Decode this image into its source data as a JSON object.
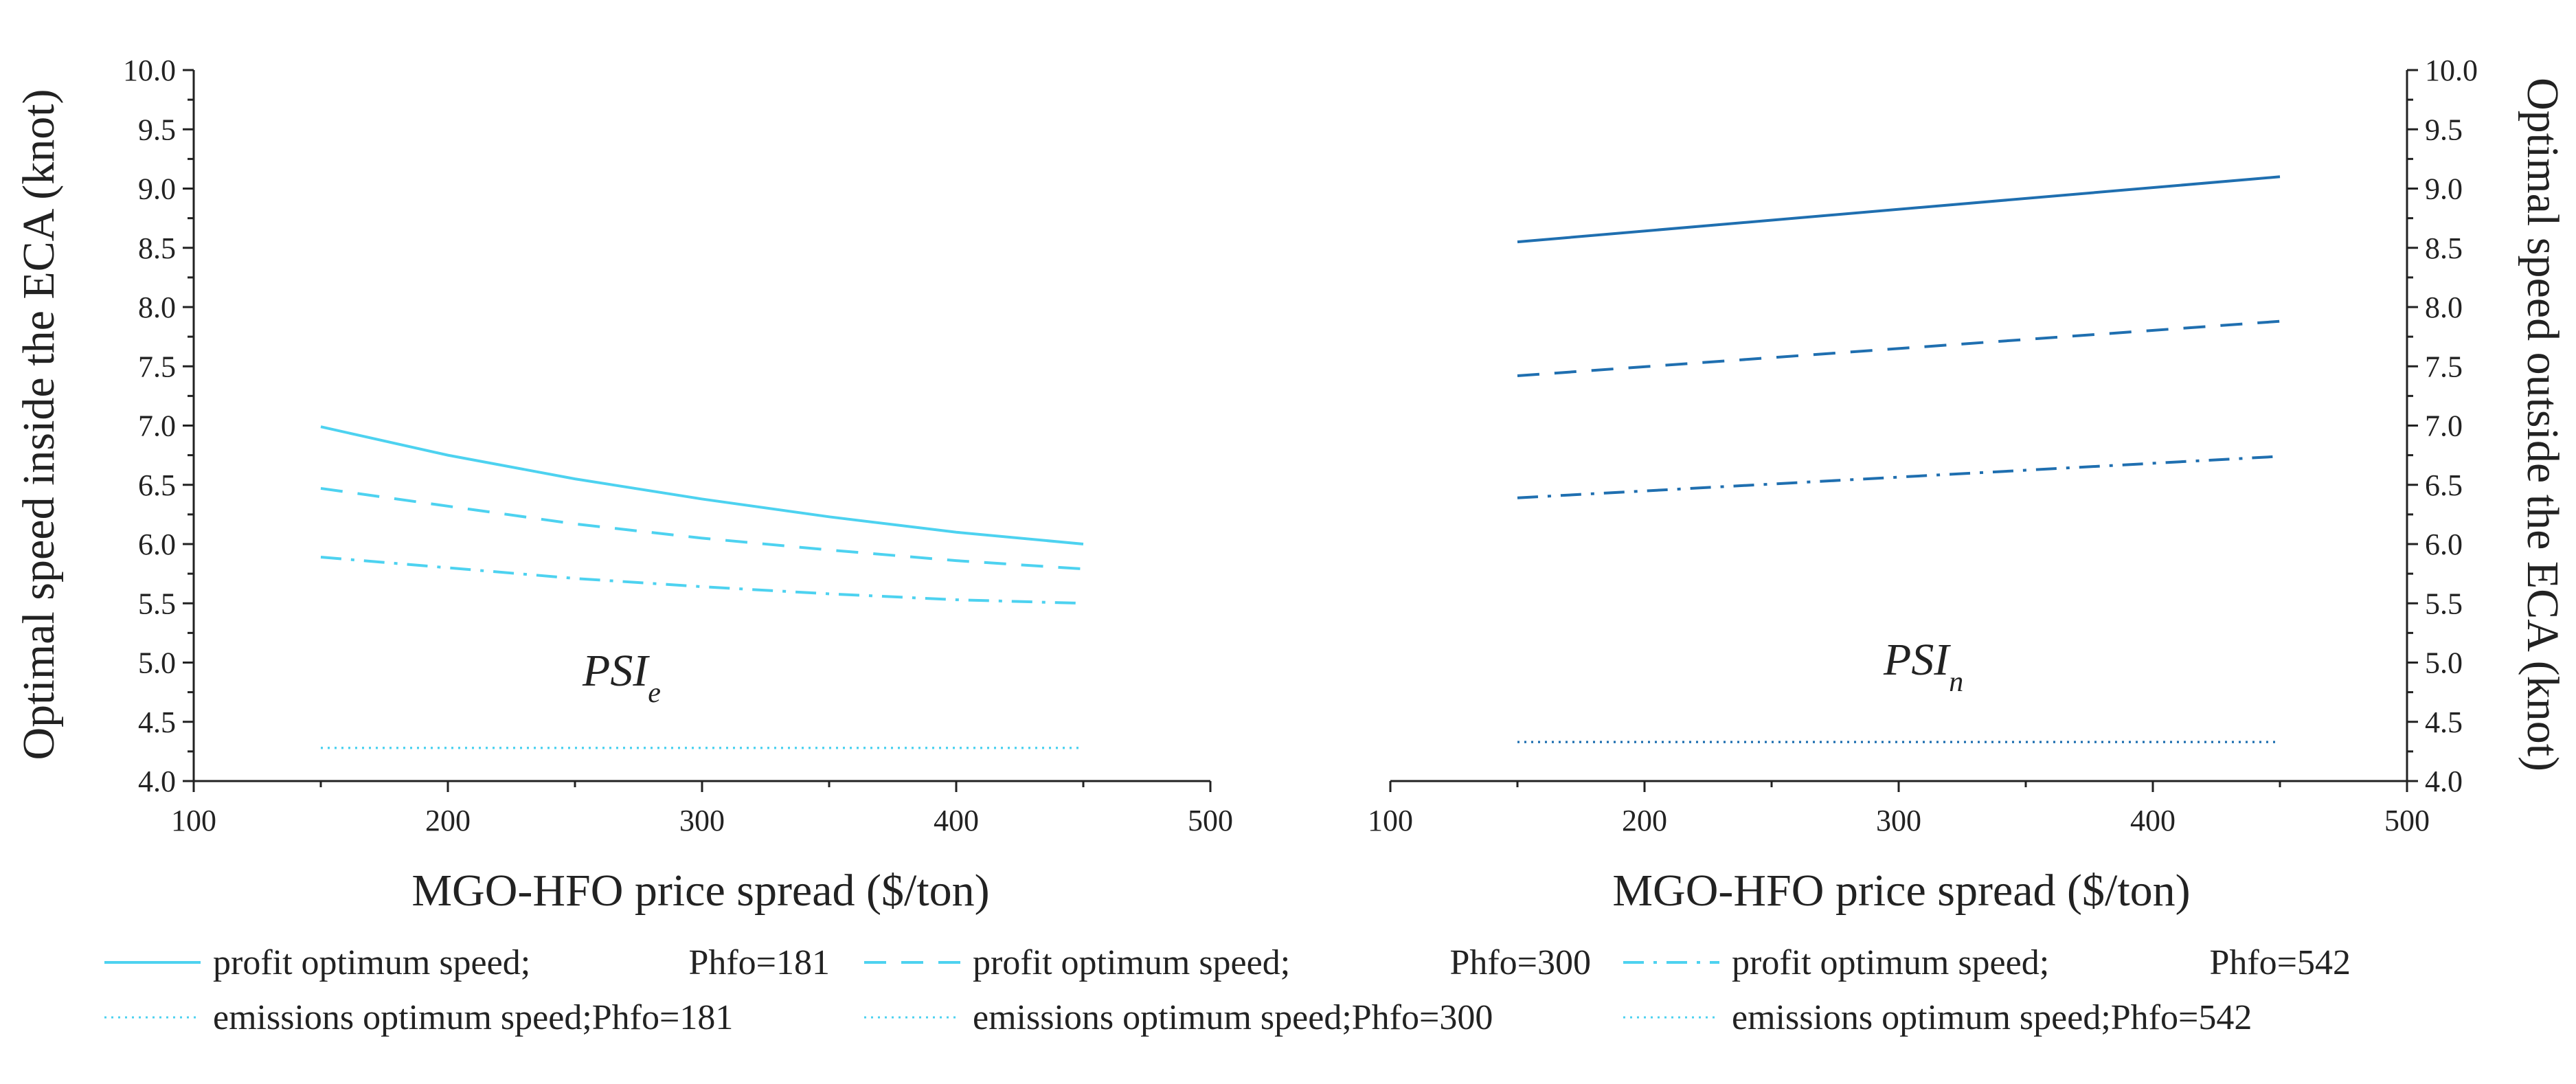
{
  "chart_data": [
    {
      "type": "line",
      "panel_label": "PSI",
      "panel_label_subscript": "e",
      "xlabel": "MGO-HFO price spread ($/ton)",
      "ylabel": "Optimal speed inside the ECA (knot)",
      "xlim": [
        100,
        500
      ],
      "ylim": [
        4.0,
        10.0
      ],
      "x_ticks": [
        "100",
        "200",
        "300",
        "400",
        "500"
      ],
      "y_ticks": [
        "4.0",
        "4.5",
        "5.0",
        "5.5",
        "6.0",
        "6.5",
        "7.0",
        "7.5",
        "8.0",
        "8.5",
        "9.0",
        "9.5",
        "10.0"
      ],
      "y_axis_side": "left",
      "grid": false,
      "x": [
        150,
        200,
        250,
        300,
        350,
        400,
        450
      ],
      "series": [
        {
          "name": "profit optimum speed; Phfo=181",
          "style": "solid",
          "color": "#4dd2f0",
          "values": [
            6.99,
            6.75,
            6.55,
            6.38,
            6.23,
            6.1,
            6.0
          ]
        },
        {
          "name": "profit optimum speed; Phfo=300",
          "style": "dashed",
          "color": "#4dd2f0",
          "values": [
            6.47,
            6.32,
            6.17,
            6.05,
            5.95,
            5.86,
            5.79
          ]
        },
        {
          "name": "profit optimum speed; Phfo=542",
          "style": "dashdot",
          "color": "#4dd2f0",
          "values": [
            5.89,
            5.8,
            5.71,
            5.64,
            5.58,
            5.53,
            5.5
          ]
        },
        {
          "name": "emissions optimum speed;Phfo=181",
          "style": "dotted",
          "color": "#4dd2f0",
          "values": [
            4.28,
            4.28,
            4.28,
            4.28,
            4.28,
            4.28,
            4.28
          ]
        },
        {
          "name": "emissions optimum speed;Phfo=300",
          "style": "dotted",
          "color": "#4dd2f0",
          "values": [
            4.28,
            4.28,
            4.28,
            4.28,
            4.28,
            4.28,
            4.28
          ]
        },
        {
          "name": "emissions optimum speed;Phfo=542",
          "style": "dotted",
          "color": "#4dd2f0",
          "values": [
            4.28,
            4.28,
            4.28,
            4.28,
            4.28,
            4.28,
            4.28
          ]
        }
      ]
    },
    {
      "type": "line",
      "panel_label": "PSI",
      "panel_label_subscript": "n",
      "xlabel": "MGO-HFO price spread ($/ton)",
      "ylabel": "Optimal speed outside the ECA (knot)",
      "xlim": [
        100,
        500
      ],
      "ylim": [
        4.0,
        10.0
      ],
      "x_ticks": [
        "100",
        "200",
        "300",
        "400",
        "500"
      ],
      "y_ticks": [
        "4.0",
        "4.5",
        "5.0",
        "5.5",
        "6.0",
        "6.5",
        "7.0",
        "7.5",
        "8.0",
        "8.5",
        "9.0",
        "9.5",
        "10.0"
      ],
      "y_axis_side": "right",
      "grid": false,
      "x": [
        150,
        450
      ],
      "series": [
        {
          "name": "profit optimum speed; Phfo=181",
          "style": "solid",
          "color": "#1f6fb0",
          "values": [
            8.55,
            9.1
          ]
        },
        {
          "name": "profit optimum speed; Phfo=300",
          "style": "dashed",
          "color": "#1f6fb0",
          "values": [
            7.42,
            7.88
          ]
        },
        {
          "name": "profit optimum speed; Phfo=542",
          "style": "dashdot",
          "color": "#1f6fb0",
          "values": [
            6.39,
            6.74
          ]
        },
        {
          "name": "emissions optimum speed;Phfo=181",
          "style": "dotted",
          "color": "#1f6fb0",
          "values": [
            4.33,
            4.33
          ]
        },
        {
          "name": "emissions optimum speed;Phfo=300",
          "style": "dotted",
          "color": "#1f6fb0",
          "values": [
            4.33,
            4.33
          ]
        },
        {
          "name": "emissions optimum speed;Phfo=542",
          "style": "dotted",
          "color": "#1f6fb0",
          "values": [
            4.33,
            4.33
          ]
        }
      ]
    }
  ],
  "legend": {
    "placement": "bottom",
    "color": "#4dd2f0",
    "entries": [
      {
        "style": "solid",
        "label": "profit optimum speed;",
        "value": "Phfo=181"
      },
      {
        "style": "dashed",
        "label": "profit optimum speed;",
        "value": "Phfo=300"
      },
      {
        "style": "dashdot",
        "label": "profit optimum speed;",
        "value": "Phfo=542"
      },
      {
        "style": "dotted",
        "label": "emissions optimum speed;Phfo=181",
        "value": ""
      },
      {
        "style": "dotted",
        "label": "emissions optimum speed;Phfo=300",
        "value": ""
      },
      {
        "style": "dotted",
        "label": "emissions optimum speed;Phfo=542",
        "value": ""
      }
    ]
  }
}
